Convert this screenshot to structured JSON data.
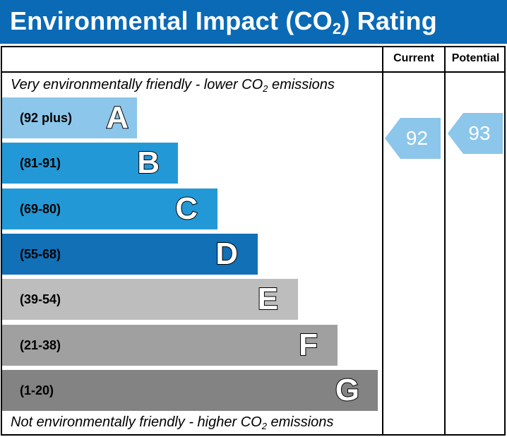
{
  "header": {
    "title_prefix": "Environmental Impact (CO",
    "title_sub": "2",
    "title_suffix": ") Rating",
    "color": "#0a6ab6"
  },
  "columns": {
    "current_label": "Current",
    "potential_label": "Potential"
  },
  "captions": {
    "top_prefix": "Very environmentally friendly - lower CO",
    "top_sub": "2",
    "top_suffix": " emissions",
    "bottom_prefix": "Not environmentally friendly - higher CO",
    "bottom_sub": "2",
    "bottom_suffix": " emissions"
  },
  "chart_data": {
    "type": "bar",
    "categories": [
      "A",
      "B",
      "C",
      "D",
      "E",
      "F",
      "G"
    ],
    "bands": [
      {
        "letter": "A",
        "range": "(92 plus)",
        "min": 92,
        "max": 100,
        "color": "#8cc6ea"
      },
      {
        "letter": "B",
        "range": "(81-91)",
        "min": 81,
        "max": 91,
        "color": "#2398d6"
      },
      {
        "letter": "C",
        "range": "(69-80)",
        "min": 69,
        "max": 80,
        "color": "#2398d6"
      },
      {
        "letter": "D",
        "range": "(55-68)",
        "min": 55,
        "max": 68,
        "color": "#1170b6"
      },
      {
        "letter": "E",
        "range": "(39-54)",
        "min": 39,
        "max": 54,
        "color": "#bdbdbd"
      },
      {
        "letter": "F",
        "range": "(21-38)",
        "min": 21,
        "max": 38,
        "color": "#a0a0a0"
      },
      {
        "letter": "G",
        "range": "(1-20)",
        "min": 1,
        "max": 20,
        "color": "#838383"
      }
    ],
    "current": {
      "value": 92,
      "band": "A",
      "color": "#8cc6ea"
    },
    "potential": {
      "value": 93,
      "band": "A",
      "color": "#8cc6ea"
    }
  }
}
